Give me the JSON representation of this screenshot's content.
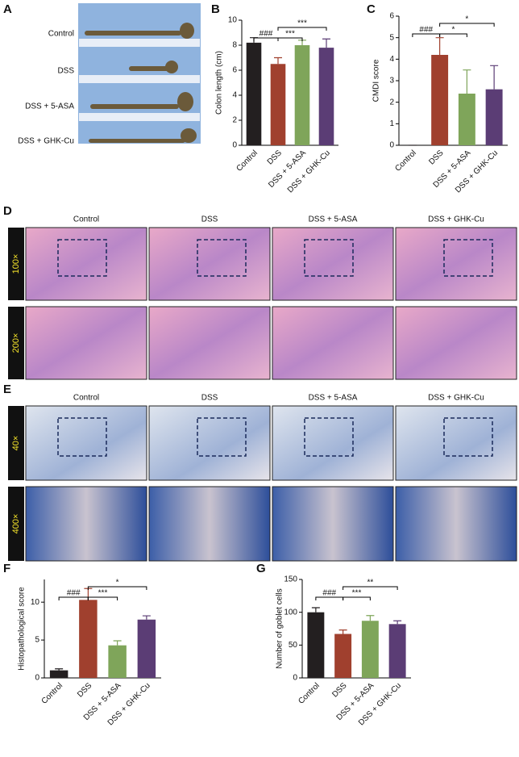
{
  "panel_a": {
    "label": "A",
    "groups": [
      "Control",
      "DSS",
      "DSS + 5-ASA",
      "DSS + GHK-Cu"
    ]
  },
  "panel_d": {
    "label": "D",
    "columns": [
      "Control",
      "DSS",
      "DSS + 5-ASA",
      "DSS + GHK-Cu"
    ],
    "rows": [
      "100×",
      "200×"
    ]
  },
  "panel_e": {
    "label": "E",
    "columns": [
      "Control",
      "DSS",
      "DSS + 5-ASA",
      "DSS + GHK-Cu"
    ],
    "rows": [
      "40×",
      "400×"
    ]
  },
  "chart_data": [
    {
      "type": "bar",
      "label": "B",
      "y_label": "Colon length (cm)",
      "categories": [
        "Control",
        "DSS",
        "DSS + 5-ASA",
        "DSS + GHK-Cu"
      ],
      "values": [
        8.2,
        6.5,
        8.0,
        7.8
      ],
      "errors": [
        0.4,
        0.5,
        0.4,
        0.7
      ],
      "colors": [
        "#231f20",
        "#a0402e",
        "#7fa55a",
        "#5b3d75"
      ],
      "ylim": [
        0,
        10
      ],
      "yticks": [
        0,
        2,
        4,
        6,
        8,
        10
      ],
      "comparisons": [
        {
          "pair": [
            "Control",
            "DSS"
          ],
          "label": "###"
        },
        {
          "pair": [
            "DSS",
            "DSS + 5-ASA"
          ],
          "label": "***"
        },
        {
          "pair": [
            "DSS",
            "DSS + GHK-Cu"
          ],
          "label": "***"
        }
      ]
    },
    {
      "type": "bar",
      "label": "C",
      "y_label": "CMDI score",
      "categories": [
        "Control",
        "DSS",
        "DSS + 5-ASA",
        "DSS + GHK-Cu"
      ],
      "values": [
        0,
        4.2,
        2.4,
        2.6
      ],
      "errors": [
        0,
        0.8,
        1.1,
        1.1
      ],
      "colors": [
        "#231f20",
        "#a0402e",
        "#7fa55a",
        "#5b3d75"
      ],
      "ylim": [
        0,
        6
      ],
      "yticks": [
        0,
        1,
        2,
        3,
        4,
        5,
        6
      ],
      "comparisons": [
        {
          "pair": [
            "Control",
            "DSS"
          ],
          "label": "###"
        },
        {
          "pair": [
            "DSS",
            "DSS + 5-ASA"
          ],
          "label": "*"
        },
        {
          "pair": [
            "DSS",
            "DSS + GHK-Cu"
          ],
          "label": "*"
        }
      ]
    },
    {
      "type": "bar",
      "label": "F",
      "y_label": "Histopathological score",
      "categories": [
        "Control",
        "DSS",
        "DSS + 5-ASA",
        "DSS + GHK-Cu"
      ],
      "values": [
        1,
        10.3,
        4.3,
        7.7
      ],
      "errors": [
        0.2,
        1.5,
        0.6,
        0.5
      ],
      "colors": [
        "#231f20",
        "#a0402e",
        "#7fa55a",
        "#5b3d75"
      ],
      "ylim": [
        0,
        13
      ],
      "yticks": [
        0,
        5,
        10
      ],
      "comparisons": [
        {
          "pair": [
            "Control",
            "DSS"
          ],
          "label": "###"
        },
        {
          "pair": [
            "DSS",
            "DSS + 5-ASA"
          ],
          "label": "***"
        },
        {
          "pair": [
            "DSS",
            "DSS + GHK-Cu"
          ],
          "label": "*"
        }
      ]
    },
    {
      "type": "bar",
      "label": "G",
      "y_label": "Number of goblet cells",
      "categories": [
        "Control",
        "DSS",
        "DSS + 5-ASA",
        "DSS + GHK-Cu"
      ],
      "values": [
        100,
        67,
        87,
        82
      ],
      "errors": [
        7,
        6,
        8,
        5
      ],
      "colors": [
        "#231f20",
        "#a0402e",
        "#7fa55a",
        "#5b3d75"
      ],
      "ylim": [
        0,
        150
      ],
      "yticks": [
        0,
        50,
        100,
        150
      ],
      "comparisons": [
        {
          "pair": [
            "Control",
            "DSS"
          ],
          "label": "###"
        },
        {
          "pair": [
            "DSS",
            "DSS + 5-ASA"
          ],
          "label": "***"
        },
        {
          "pair": [
            "DSS",
            "DSS + GHK-Cu"
          ],
          "label": "**"
        }
      ]
    }
  ]
}
